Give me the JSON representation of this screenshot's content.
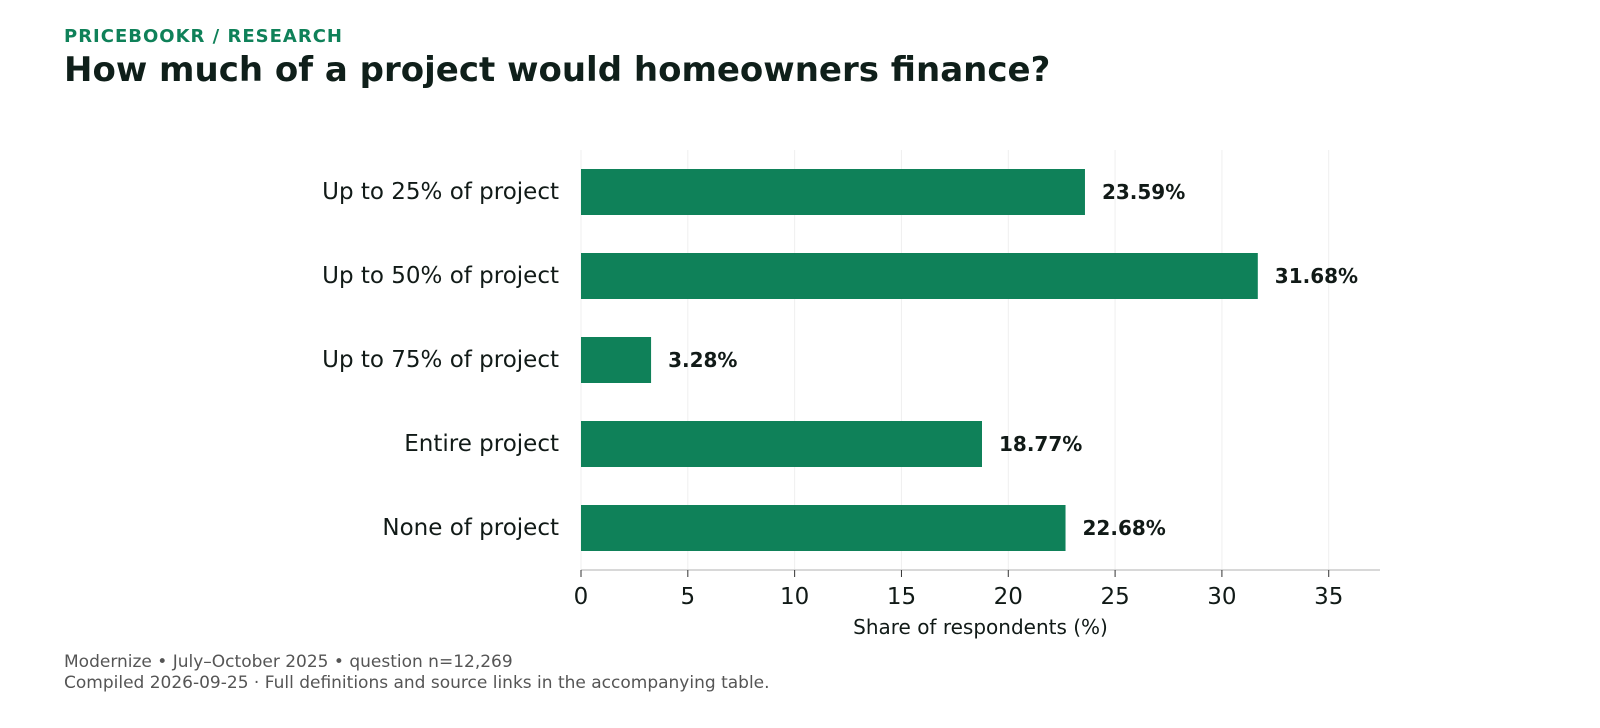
{
  "header": {
    "kicker": "PRICEBOOKR / RESEARCH",
    "title": "How much of a project would homeowners finance?"
  },
  "footer": {
    "line1": "Modernize • July–October 2025 • question n=12,269",
    "line2": "Compiled 2026-09-25 · Full definitions and source links in the accompanying table."
  },
  "chart_data": {
    "type": "bar",
    "orientation": "horizontal",
    "categories": [
      "Up to 25% of project",
      "Up to 50% of project",
      "Up to 75% of project",
      "Entire project",
      "None of project"
    ],
    "values": [
      23.59,
      31.68,
      3.28,
      18.77,
      22.68
    ],
    "data_labels": [
      "23.59%",
      "31.68%",
      "3.28%",
      "18.77%",
      "22.68%"
    ],
    "xlabel": "Share of respondents (%)",
    "ylabel": "",
    "xlim": [
      0,
      37.4
    ],
    "xticks": [
      0,
      5,
      10,
      15,
      20,
      25,
      30,
      35
    ],
    "grid": "vertical",
    "legend": "none",
    "colors": {
      "bar": "#0f8159",
      "label": "#111a17",
      "axis": "#cccccc",
      "grid": "#efefef"
    }
  }
}
